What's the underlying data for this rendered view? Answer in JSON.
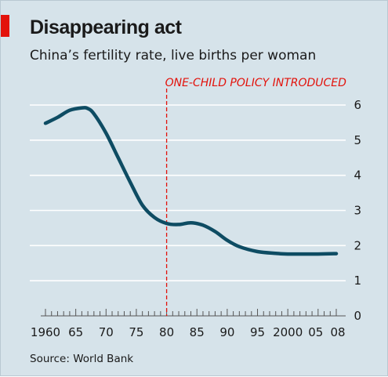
{
  "header": {
    "title": "Disappearing act",
    "subtitle": "China’s fertility rate, live births per woman"
  },
  "footer": {
    "source": "Source: World Bank"
  },
  "colors": {
    "line": "#0e4c63",
    "accent": "#e3120b",
    "background": "#d6e3ea"
  },
  "chart_data": {
    "type": "line",
    "title": "Disappearing act",
    "subtitle": "China’s fertility rate, live births per woman",
    "xlabel": "",
    "ylabel": "",
    "xlim": [
      1960,
      2008
    ],
    "ylim": [
      0,
      6
    ],
    "y_axis_position": "right",
    "grid": "horizontal",
    "x_ticks": [
      {
        "value": 1960,
        "label": "1960"
      },
      {
        "value": 1965,
        "label": "65"
      },
      {
        "value": 1970,
        "label": "70"
      },
      {
        "value": 1975,
        "label": "75"
      },
      {
        "value": 1980,
        "label": "80"
      },
      {
        "value": 1985,
        "label": "85"
      },
      {
        "value": 1990,
        "label": "90"
      },
      {
        "value": 1995,
        "label": "95"
      },
      {
        "value": 2000,
        "label": "2000"
      },
      {
        "value": 2005,
        "label": "05"
      },
      {
        "value": 2008,
        "label": "08"
      }
    ],
    "y_ticks": [
      {
        "value": 0,
        "label": "0"
      },
      {
        "value": 1,
        "label": "1"
      },
      {
        "value": 2,
        "label": "2"
      },
      {
        "value": 3,
        "label": "3"
      },
      {
        "value": 4,
        "label": "4"
      },
      {
        "value": 5,
        "label": "5"
      },
      {
        "value": 6,
        "label": "6"
      }
    ],
    "series": [
      {
        "points": [
          [
            1960,
            5.48
          ],
          [
            1962,
            5.65
          ],
          [
            1964,
            5.85
          ],
          [
            1966,
            5.92
          ],
          [
            1967,
            5.9
          ],
          [
            1968,
            5.75
          ],
          [
            1970,
            5.2
          ],
          [
            1972,
            4.5
          ],
          [
            1974,
            3.8
          ],
          [
            1976,
            3.15
          ],
          [
            1978,
            2.8
          ],
          [
            1980,
            2.63
          ],
          [
            1982,
            2.6
          ],
          [
            1984,
            2.65
          ],
          [
            1986,
            2.58
          ],
          [
            1988,
            2.4
          ],
          [
            1990,
            2.15
          ],
          [
            1992,
            1.97
          ],
          [
            1995,
            1.83
          ],
          [
            1998,
            1.78
          ],
          [
            2000,
            1.76
          ],
          [
            2005,
            1.76
          ],
          [
            2008,
            1.77
          ]
        ]
      }
    ],
    "annotations": [
      {
        "type": "vertical-line",
        "x": 1980,
        "label": "ONE-CHILD POLICY INTRODUCED"
      }
    ]
  }
}
